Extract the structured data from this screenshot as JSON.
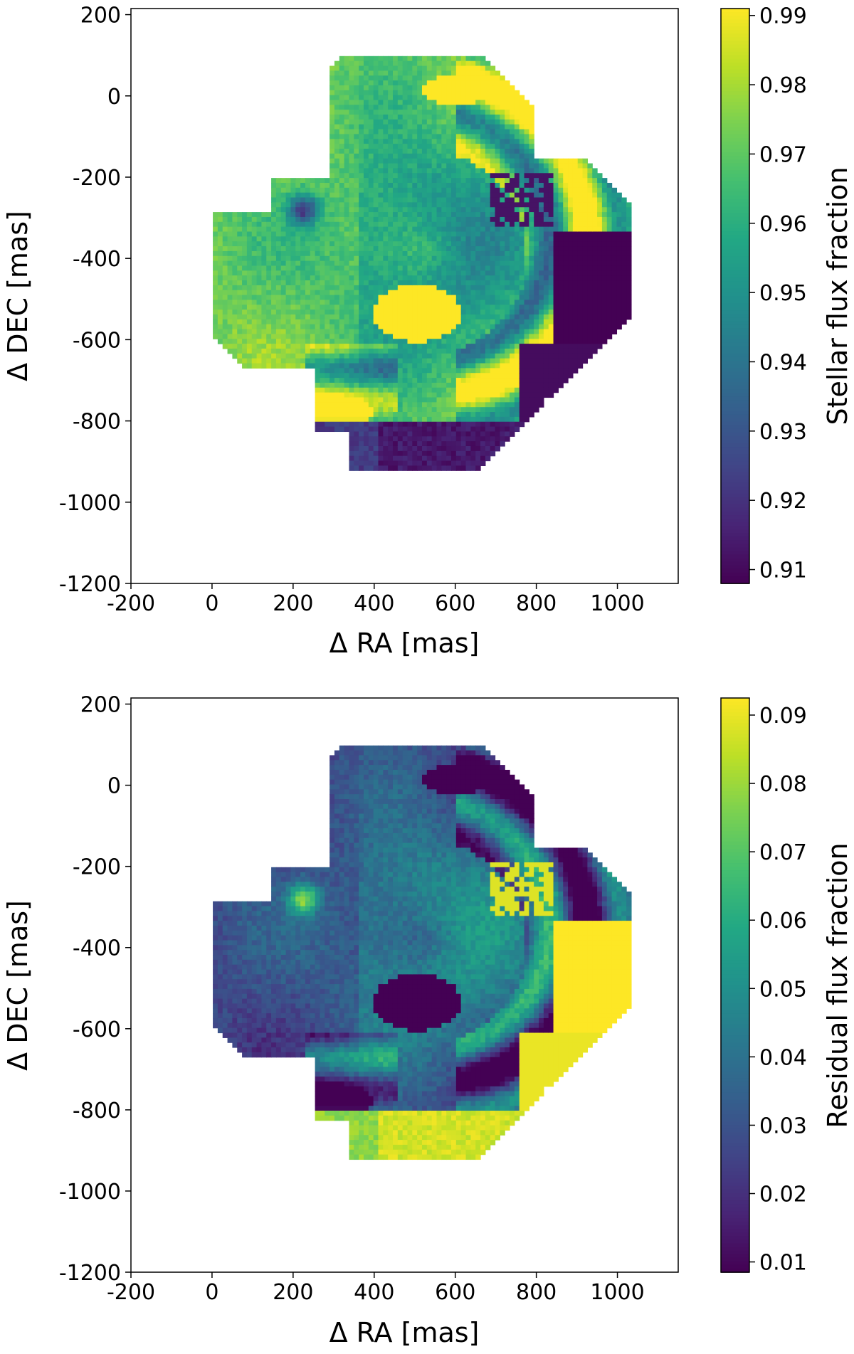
{
  "chart_data": [
    {
      "type": "heatmap",
      "panel": "top",
      "xlabel": "Δ RA [mas]",
      "ylabel": "Δ DEC [mas]",
      "xlim": [
        -200,
        1150
      ],
      "ylim": [
        -1200,
        215
      ],
      "xticks": [
        -200,
        0,
        200,
        400,
        600,
        800,
        1000
      ],
      "yticks": [
        200,
        0,
        -200,
        -400,
        -600,
        -800,
        -1000,
        -1200
      ],
      "colormap": "viridis",
      "colorbar": {
        "label": "Stellar flux fraction",
        "min": 0.908,
        "max": 0.991,
        "ticks": [
          0.91,
          0.92,
          0.93,
          0.94,
          0.95,
          0.96,
          0.97,
          0.98,
          0.99
        ],
        "tick_labels": [
          "0.91",
          "0.92",
          "0.93",
          "0.94",
          "0.95",
          "0.96",
          "0.97",
          "0.98",
          "0.99"
        ]
      },
      "features": {
        "background_level": 0.972,
        "dark_spot": {
          "x": 220,
          "y": -275,
          "value": 0.93
        },
        "bright_blobs": [
          {
            "x": 500,
            "y": -530,
            "value": 0.99
          },
          {
            "x": 600,
            "y": 30,
            "value": 0.99
          },
          {
            "x": 270,
            "y": -780,
            "value": 0.99
          }
        ],
        "dark_regions": [
          {
            "x": 900,
            "y": -500,
            "value": 0.908
          },
          {
            "x": 550,
            "y": -850,
            "value": 0.908
          }
        ]
      }
    },
    {
      "type": "heatmap",
      "panel": "bottom",
      "xlabel": "Δ RA [mas]",
      "ylabel": "Δ DEC [mas]",
      "xlim": [
        -200,
        1150
      ],
      "ylim": [
        -1200,
        215
      ],
      "xticks": [
        -200,
        0,
        200,
        400,
        600,
        800,
        1000
      ],
      "yticks": [
        200,
        0,
        -200,
        -400,
        -600,
        -800,
        -1000,
        -1200
      ],
      "colormap": "viridis",
      "colorbar": {
        "label": "Residual flux fraction",
        "min": 0.0085,
        "max": 0.0925,
        "ticks": [
          0.01,
          0.02,
          0.03,
          0.04,
          0.05,
          0.06,
          0.07,
          0.08,
          0.09
        ],
        "tick_labels": [
          "0.01",
          "0.02",
          "0.03",
          "0.04",
          "0.05",
          "0.06",
          "0.07",
          "0.08",
          "0.09"
        ]
      },
      "features": {
        "background_level": 0.027,
        "bright_spot": {
          "x": 220,
          "y": -275,
          "value": 0.07
        },
        "dark_blobs": [
          {
            "x": 500,
            "y": -530,
            "value": 0.0085
          },
          {
            "x": 600,
            "y": 30,
            "value": 0.0085
          },
          {
            "x": 270,
            "y": -780,
            "value": 0.0085
          }
        ],
        "bright_regions": [
          {
            "x": 900,
            "y": -500,
            "value": 0.0925
          },
          {
            "x": 550,
            "y": -850,
            "value": 0.0925
          }
        ]
      }
    }
  ]
}
